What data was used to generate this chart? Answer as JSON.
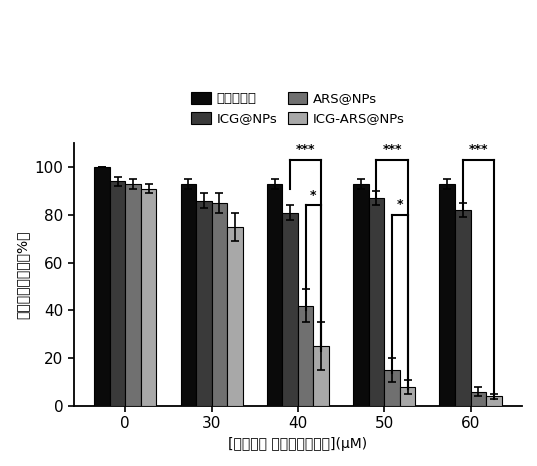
{
  "categories": [
    0,
    30,
    40,
    50,
    60
  ],
  "series": {
    "控制对照组": {
      "values": [
        100,
        93,
        93,
        93,
        93
      ],
      "errors": [
        0,
        2,
        2,
        2,
        2
      ],
      "color": "#0a0a0a"
    },
    "ICG@NPs": {
      "values": [
        94,
        86,
        81,
        87,
        82
      ],
      "errors": [
        2,
        3,
        3,
        3,
        3
      ],
      "color": "#3a3a3a"
    },
    "ARS@NPs": {
      "values": [
        93,
        85,
        42,
        15,
        6
      ],
      "errors": [
        2,
        4,
        7,
        5,
        2
      ],
      "color": "#707070"
    },
    "ICG-ARS@NPs": {
      "values": [
        91,
        75,
        25,
        8,
        4
      ],
      "errors": [
        2,
        6,
        10,
        3,
        1
      ],
      "color": "#a8a8a8"
    }
  },
  "series_order": [
    "控制对照组",
    "ICG@NPs",
    "ARS@NPs",
    "ICG-ARS@NPs"
  ],
  "ylabel": "相对细胞存活率（%）",
  "xlabel": "[吲哚菁绿 或青蒿琥酯浓度](μM)",
  "ylim": [
    0,
    110
  ],
  "yticks": [
    0,
    20,
    40,
    60,
    80,
    100
  ],
  "bar_width": 0.18,
  "figsize": [
    5.37,
    4.66
  ],
  "dpi": 100
}
